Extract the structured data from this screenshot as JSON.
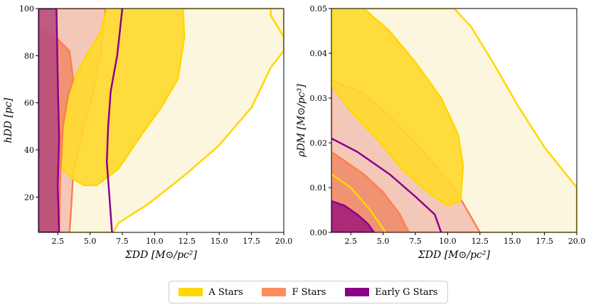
{
  "chart_data": [
    {
      "type": "contour",
      "xlabel": "ΣDD [M⊙/pc²]",
      "ylabel": "hDD [pc]",
      "xlim": [
        1.0,
        20.0
      ],
      "ylim": [
        5,
        100
      ],
      "xticks": [
        2.5,
        5.0,
        7.5,
        10.0,
        12.5,
        15.0,
        17.5,
        20.0
      ],
      "xtick_labels": [
        "2.5",
        "5.0",
        "7.5",
        "10.0",
        "12.5",
        "15.0",
        "17.5",
        "20.0"
      ],
      "yticks": [
        20,
        40,
        60,
        80,
        100
      ],
      "ytick_labels": [
        "20",
        "40",
        "60",
        "80",
        "100"
      ],
      "series": [
        {
          "name": "A Stars",
          "level": "outer",
          "points": [
            [
              4.0,
              5
            ],
            [
              6.8,
              5
            ],
            [
              7.2,
              9
            ],
            [
              9.5,
              17
            ],
            [
              12.5,
              30
            ],
            [
              15,
              42
            ],
            [
              17.5,
              58
            ],
            [
              19,
              75
            ],
            [
              20,
              82
            ],
            [
              20,
              100
            ],
            [
              19.0,
              100
            ],
            [
              19.0,
              97
            ],
            [
              20,
              88
            ],
            [
              20,
              100
            ],
            [
              1.0,
              100
            ],
            [
              1.0,
              5
            ]
          ]
        },
        {
          "name": "A Stars",
          "level": "inner",
          "points": [
            [
              2.3,
              40
            ],
            [
              3.0,
              60
            ],
            [
              4.3,
              76
            ],
            [
              5.8,
              90
            ],
            [
              6.3,
              100
            ],
            [
              12.2,
              100
            ],
            [
              12.3,
              88
            ],
            [
              11.8,
              70
            ],
            [
              10.5,
              58
            ],
            [
              8.8,
              45
            ],
            [
              7.2,
              32
            ],
            [
              5.5,
              25
            ],
            [
              4.5,
              25
            ],
            [
              3.6,
              28
            ],
            [
              2.7,
              33
            ]
          ]
        },
        {
          "name": "F Stars",
          "level": "outer",
          "points": [
            [
              1.0,
              5
            ],
            [
              3.4,
              5
            ],
            [
              3.5,
              12
            ],
            [
              3.7,
              30
            ],
            [
              4.5,
              50
            ],
            [
              5.2,
              64
            ],
            [
              5.8,
              80
            ],
            [
              6.2,
              100
            ],
            [
              1.0,
              100
            ]
          ]
        },
        {
          "name": "F Stars",
          "level": "inner",
          "points": [
            [
              1.0,
              5
            ],
            [
              2.6,
              5
            ],
            [
              2.7,
              30
            ],
            [
              2.9,
              50
            ],
            [
              3.3,
              63
            ],
            [
              3.7,
              70
            ],
            [
              3.4,
              82
            ],
            [
              2.5,
              87
            ],
            [
              1.6,
              90
            ],
            [
              1.0,
              91
            ]
          ]
        },
        {
          "name": "Early G Stars",
          "level": "outer",
          "points": [
            [
              1.0,
              5
            ],
            [
              2.6,
              5
            ],
            [
              2.5,
              25
            ],
            [
              2.6,
              45
            ],
            [
              2.5,
              70
            ],
            [
              2.4,
              100
            ],
            [
              1.0,
              100
            ]
          ]
        },
        {
          "name": "Early G Stars",
          "level": "inner_line",
          "points": [
            [
              6.7,
              5
            ],
            [
              6.5,
              20
            ],
            [
              6.3,
              35
            ],
            [
              6.4,
              50
            ],
            [
              6.6,
              65
            ],
            [
              7.1,
              80
            ],
            [
              7.5,
              100
            ]
          ]
        }
      ]
    },
    {
      "type": "contour",
      "xlabel": "ΣDD [M⊙/pc²]",
      "ylabel": "ρDM [M⊙/pc³]",
      "xlim": [
        1.0,
        20.0
      ],
      "ylim": [
        0.0,
        0.05
      ],
      "xticks": [
        2.5,
        5.0,
        7.5,
        10.0,
        12.5,
        15.0,
        17.5,
        20.0
      ],
      "xtick_labels": [
        "2.5",
        "5.0",
        "7.5",
        "10.0",
        "12.5",
        "15.0",
        "17.5",
        "20.0"
      ],
      "yticks": [
        0.0,
        0.01,
        0.02,
        0.03,
        0.04,
        0.05
      ],
      "ytick_labels": [
        "0.00",
        "0.01",
        "0.02",
        "0.03",
        "0.04",
        "0.05"
      ],
      "series": [
        {
          "name": "A Stars",
          "level": "outer",
          "points": [
            [
              1.0,
              0.0
            ],
            [
              20,
              0.0
            ],
            [
              20,
              0.01
            ],
            [
              17.5,
              0.019
            ],
            [
              15.5,
              0.028
            ],
            [
              13.5,
              0.038
            ],
            [
              11.8,
              0.046
            ],
            [
              10.5,
              0.05
            ],
            [
              1.0,
              0.05
            ]
          ]
        },
        {
          "name": "A Stars",
          "level": "inner",
          "points": [
            [
              1.0,
              0.05
            ],
            [
              3.5,
              0.05
            ],
            [
              5.5,
              0.045
            ],
            [
              7.5,
              0.038
            ],
            [
              9.5,
              0.03
            ],
            [
              10.8,
              0.022
            ],
            [
              11.2,
              0.015
            ],
            [
              11.0,
              0.007
            ],
            [
              10.0,
              0.006
            ],
            [
              8.5,
              0.009
            ],
            [
              6.5,
              0.014
            ],
            [
              4.5,
              0.021
            ],
            [
              2.5,
              0.027
            ],
            [
              1.0,
              0.033
            ]
          ]
        },
        {
          "name": "F Stars",
          "level": "outer",
          "points": [
            [
              1.0,
              0.0
            ],
            [
              12.5,
              0.0
            ],
            [
              11.5,
              0.005
            ],
            [
              10.5,
              0.01
            ],
            [
              9,
              0.015
            ],
            [
              7.5,
              0.02
            ],
            [
              5.5,
              0.026
            ],
            [
              3.5,
              0.031
            ],
            [
              1.0,
              0.034
            ]
          ]
        },
        {
          "name": "F Stars",
          "level": "inner",
          "points": [
            [
              1.0,
              0.0
            ],
            [
              7.0,
              0.0
            ],
            [
              6.3,
              0.004
            ],
            [
              5.0,
              0.009
            ],
            [
              3.5,
              0.013
            ],
            [
              2.0,
              0.016
            ],
            [
              1.0,
              0.018
            ]
          ]
        },
        {
          "name": "Early G Stars",
          "level": "outer_line",
          "points": [
            [
              1.0,
              0.021
            ],
            [
              3.0,
              0.018
            ],
            [
              5.5,
              0.013
            ],
            [
              7.5,
              0.008
            ],
            [
              9.0,
              0.004
            ],
            [
              9.5,
              0.0
            ]
          ]
        },
        {
          "name": "Early G Stars",
          "level": "inner",
          "points": [
            [
              1.0,
              0.0
            ],
            [
              4.3,
              0.0
            ],
            [
              3.8,
              0.002
            ],
            [
              3.0,
              0.004
            ],
            [
              2.0,
              0.006
            ],
            [
              1.0,
              0.007
            ]
          ]
        },
        {
          "name": "A Stars",
          "level": "inner_line_low",
          "points": [
            [
              1.0,
              0.013
            ],
            [
              2.5,
              0.01
            ],
            [
              4.0,
              0.005
            ],
            [
              5.2,
              0.0
            ]
          ]
        }
      ]
    }
  ],
  "legend": {
    "items": [
      {
        "label": "A Stars",
        "color": "#ffd700"
      },
      {
        "label": "F Stars",
        "color": "#ff8c5a"
      },
      {
        "label": "Early G Stars",
        "color": "#8b008b"
      }
    ]
  },
  "colors": {
    "a_outer_fill": "#fdf5dc",
    "a_inner_fill": "#ffd92b",
    "a_line": "#ffd700",
    "f_outer_fill": "#f3c3b4",
    "f_inner_fill": "#ef8d6c",
    "f_line": "#ff7f50",
    "g_outer_fill": "#b94e7c",
    "g_inner_fill": "#a4207a",
    "g_line": "#8b008b"
  }
}
